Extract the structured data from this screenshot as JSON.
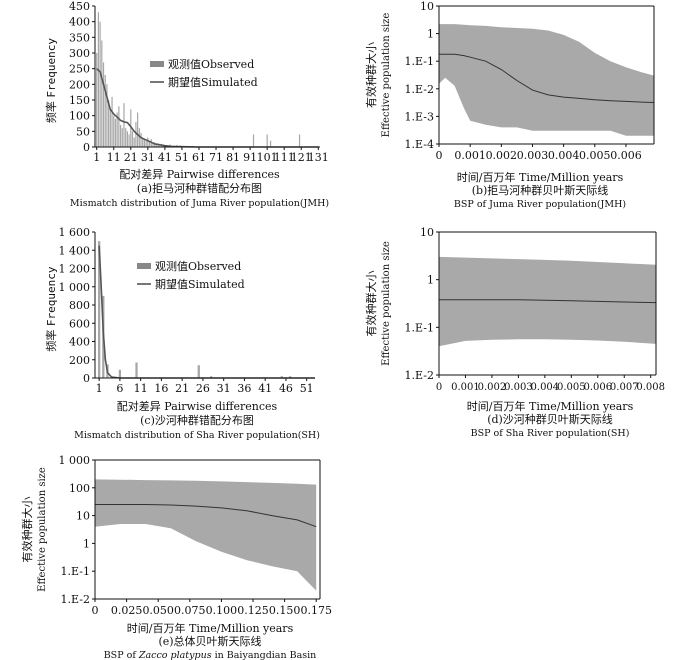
{
  "chart_data": [
    {
      "id": "a",
      "type": "bar",
      "subtitle_cn": "(a)拒马河种群错配分布图",
      "subtitle_en": "Mismatch distribution of Juma River population(JMH)",
      "xlabel": "配对差异 Pairwise differences",
      "ylabel_cn": "频率",
      "ylabel_en": "Frequency",
      "xlim": [
        0,
        132
      ],
      "ylim": [
        0,
        450
      ],
      "xticks": [
        1,
        11,
        21,
        31,
        41,
        51,
        61,
        71,
        81,
        91,
        101,
        111,
        121,
        131
      ],
      "yticks": [
        0,
        50,
        100,
        150,
        200,
        250,
        300,
        350,
        400,
        450
      ],
      "legend": [
        "观测值Observed",
        "期望值Simulated"
      ],
      "observed": {
        "x": [
          1,
          2,
          3,
          4,
          5,
          6,
          7,
          8,
          9,
          10,
          11,
          12,
          13,
          14,
          15,
          16,
          17,
          18,
          19,
          20,
          21,
          22,
          23,
          24,
          25,
          26,
          27,
          28,
          29,
          30,
          31,
          32,
          33,
          34,
          35,
          36,
          37,
          38,
          39,
          40,
          42,
          44,
          46,
          48,
          50,
          93,
          101,
          103,
          120
        ],
        "y": [
          300,
          430,
          400,
          340,
          270,
          230,
          200,
          150,
          120,
          160,
          100,
          90,
          110,
          130,
          70,
          60,
          140,
          60,
          50,
          40,
          120,
          50,
          30,
          80,
          110,
          60,
          45,
          30,
          25,
          20,
          30,
          20,
          25,
          15,
          15,
          12,
          12,
          10,
          10,
          8,
          6,
          8,
          5,
          6,
          5,
          40,
          40,
          20,
          40
        ]
      },
      "simulated": {
        "x": [
          1,
          3,
          5,
          7,
          9,
          11,
          13,
          15,
          17,
          19,
          21,
          23,
          25,
          27,
          29,
          31,
          33,
          35,
          37,
          39,
          41,
          45,
          51,
          61,
          71,
          131
        ],
        "y": [
          250,
          240,
          200,
          160,
          120,
          105,
          95,
          85,
          80,
          78,
          65,
          50,
          40,
          30,
          25,
          20,
          15,
          10,
          8,
          6,
          4,
          2,
          1,
          0,
          0,
          0
        ]
      }
    },
    {
      "id": "b",
      "type": "area",
      "subtitle_cn": "(b)拒马河种群贝叶斯天际线",
      "subtitle_en": "BSP of Juma River population(JMH)",
      "xlabel": "时间/百万年 Time/Million years",
      "ylabel_cn": "有效种群大小",
      "ylabel_en": "Effective population size",
      "xlim": [
        0,
        0.0069
      ],
      "ylim": [
        0.0001,
        10
      ],
      "log_y": true,
      "xticks": [
        0,
        0.001,
        0.002,
        0.003,
        0.004,
        0.005,
        0.006
      ],
      "xtick_labels": [
        "0",
        "0.001",
        "0.002",
        "0.003",
        "0.004",
        "0.005",
        "0.006"
      ],
      "yticks": [
        0.0001,
        0.001,
        0.01,
        0.1,
        1,
        10
      ],
      "ytick_labels": [
        "1.E-4",
        "1.E-3",
        "1.E-2",
        "1.E-1",
        "1",
        "10"
      ],
      "x": [
        0,
        0.0002,
        0.0005,
        0.0008,
        0.001,
        0.0015,
        0.002,
        0.0025,
        0.003,
        0.0035,
        0.004,
        0.0045,
        0.005,
        0.0055,
        0.006,
        0.0065,
        0.0069
      ],
      "median": [
        0.18,
        0.18,
        0.18,
        0.16,
        0.14,
        0.1,
        0.05,
        0.02,
        0.009,
        0.006,
        0.005,
        0.0045,
        0.004,
        0.0037,
        0.0035,
        0.0033,
        0.0032
      ],
      "upper": [
        2.2,
        2.2,
        2.2,
        2.1,
        2.0,
        1.9,
        1.7,
        1.6,
        1.5,
        1.3,
        0.9,
        0.5,
        0.2,
        0.1,
        0.06,
        0.04,
        0.03
      ],
      "lower": [
        0.015,
        0.025,
        0.013,
        0.002,
        0.0007,
        0.0005,
        0.0004,
        0.0004,
        0.0003,
        0.0003,
        0.0003,
        0.0003,
        0.0003,
        0.0003,
        0.0002,
        0.0002,
        0.0002
      ]
    },
    {
      "id": "c",
      "type": "bar",
      "subtitle_cn": "(c)沙河种群错配分布图",
      "subtitle_en": "Mismatch distribution of Sha River population(SH)",
      "xlabel": "配对差异 Pairwise differences",
      "ylabel_cn": "频率",
      "ylabel_en": "Frequency",
      "xlim": [
        0,
        53
      ],
      "ylim": [
        0,
        1600
      ],
      "xticks": [
        1,
        6,
        11,
        16,
        21,
        26,
        31,
        36,
        41,
        46,
        51
      ],
      "yticks": [
        0,
        200,
        400,
        600,
        800,
        1000,
        1200,
        1400,
        1600
      ],
      "ytick_labels": [
        "0",
        "200",
        "400",
        "600",
        "800",
        "1 000",
        "1 200",
        "1 400",
        "1 600"
      ],
      "legend": [
        "观测值Observed",
        "期望值Simulated"
      ],
      "observed": {
        "x": [
          1,
          2,
          3,
          6,
          10,
          25,
          28,
          45,
          47
        ],
        "y": [
          1500,
          900,
          150,
          90,
          170,
          140,
          20,
          20,
          20
        ]
      },
      "simulated": {
        "x": [
          1,
          1.5,
          2,
          2.5,
          3,
          4,
          6,
          10,
          53
        ],
        "y": [
          1450,
          1000,
          500,
          200,
          60,
          10,
          0,
          0,
          0
        ]
      }
    },
    {
      "id": "d",
      "type": "area",
      "subtitle_cn": "(d)沙河种群贝叶斯天际线",
      "subtitle_en": "BSP of Sha River population(SH)",
      "xlabel": "时间/百万年 Time/Million years",
      "ylabel_cn": "有效种群大小",
      "ylabel_en": "Effective population size",
      "xlim": [
        0,
        0.0082
      ],
      "ylim": [
        0.01,
        10
      ],
      "log_y": true,
      "xticks": [
        0,
        0.001,
        0.002,
        0.003,
        0.004,
        0.005,
        0.006,
        0.007,
        0.008
      ],
      "xtick_labels": [
        "0",
        "0.001",
        "0.002",
        "0.003",
        "0.004",
        "0.005",
        "0.006",
        "0.007",
        "0.008"
      ],
      "yticks": [
        0.01,
        0.1,
        1,
        10
      ],
      "ytick_labels": [
        "1.E-2",
        "1.E-1",
        "1",
        "10"
      ],
      "x": [
        0,
        0.001,
        0.002,
        0.003,
        0.004,
        0.005,
        0.006,
        0.007,
        0.0082
      ],
      "median": [
        0.38,
        0.38,
        0.38,
        0.38,
        0.37,
        0.36,
        0.35,
        0.34,
        0.33
      ],
      "upper": [
        3.0,
        2.9,
        2.8,
        2.7,
        2.6,
        2.5,
        2.35,
        2.2,
        2.05
      ],
      "lower": [
        0.04,
        0.052,
        0.055,
        0.056,
        0.056,
        0.055,
        0.053,
        0.05,
        0.045
      ]
    },
    {
      "id": "e",
      "type": "area",
      "subtitle_cn": "(e)总体贝叶斯天际线",
      "subtitle_en_prefix": "BSP of ",
      "subtitle_en_species": "Zacco platypus",
      "subtitle_en_suffix": " in Baiyangdian Basin",
      "xlabel": "时间/百万年 Time/Million years",
      "ylabel_cn": "有效种群大小",
      "ylabel_en": "Effective population size",
      "xlim": [
        0,
        0.178
      ],
      "ylim": [
        0.01,
        1000
      ],
      "log_y": true,
      "xticks": [
        0,
        0.025,
        0.05,
        0.075,
        0.1,
        0.125,
        0.15,
        0.175
      ],
      "xtick_labels": [
        "0",
        "0.025",
        "0.050",
        "0.075",
        "0.100",
        "0.125",
        "0.150",
        "0.175"
      ],
      "yticks": [
        0.01,
        0.1,
        1,
        10,
        100,
        1000
      ],
      "ytick_labels": [
        "1.E-2",
        "1.E-1",
        "1",
        "10",
        "100",
        "1 000"
      ],
      "x": [
        0,
        0.02,
        0.04,
        0.06,
        0.08,
        0.1,
        0.12,
        0.14,
        0.16,
        0.175
      ],
      "median": [
        25,
        25,
        25,
        24,
        22,
        19,
        15,
        10,
        7,
        4
      ],
      "upper": [
        200,
        195,
        190,
        185,
        178,
        170,
        160,
        150,
        140,
        130
      ],
      "lower": [
        4,
        5,
        5,
        3.5,
        1.2,
        0.5,
        0.25,
        0.15,
        0.1,
        0.02
      ]
    }
  ]
}
